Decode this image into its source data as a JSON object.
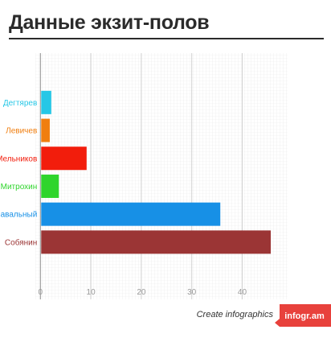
{
  "header": {
    "title": "Данные экзит-полов"
  },
  "chart_data": {
    "type": "bar",
    "orientation": "horizontal",
    "title": "Данные экзит-полов",
    "categories": [
      "Дегтярев",
      "Левичев",
      "Мельников",
      "Митрохин",
      "Навальный",
      "Собянин"
    ],
    "values": [
      2.0,
      1.7,
      9.0,
      3.5,
      35.5,
      45.5
    ],
    "colors": [
      "#25c7e6",
      "#f07e0f",
      "#f21d0c",
      "#2fd52c",
      "#1790e6",
      "#9b3535"
    ],
    "xlim": [
      -1,
      49
    ],
    "xticks": [
      0,
      10,
      20,
      30,
      40
    ],
    "grid": true,
    "legend": "none"
  },
  "footer": {
    "text": "Create infographics",
    "brand": "infogr.am",
    "brand_color": "#e8413c"
  }
}
